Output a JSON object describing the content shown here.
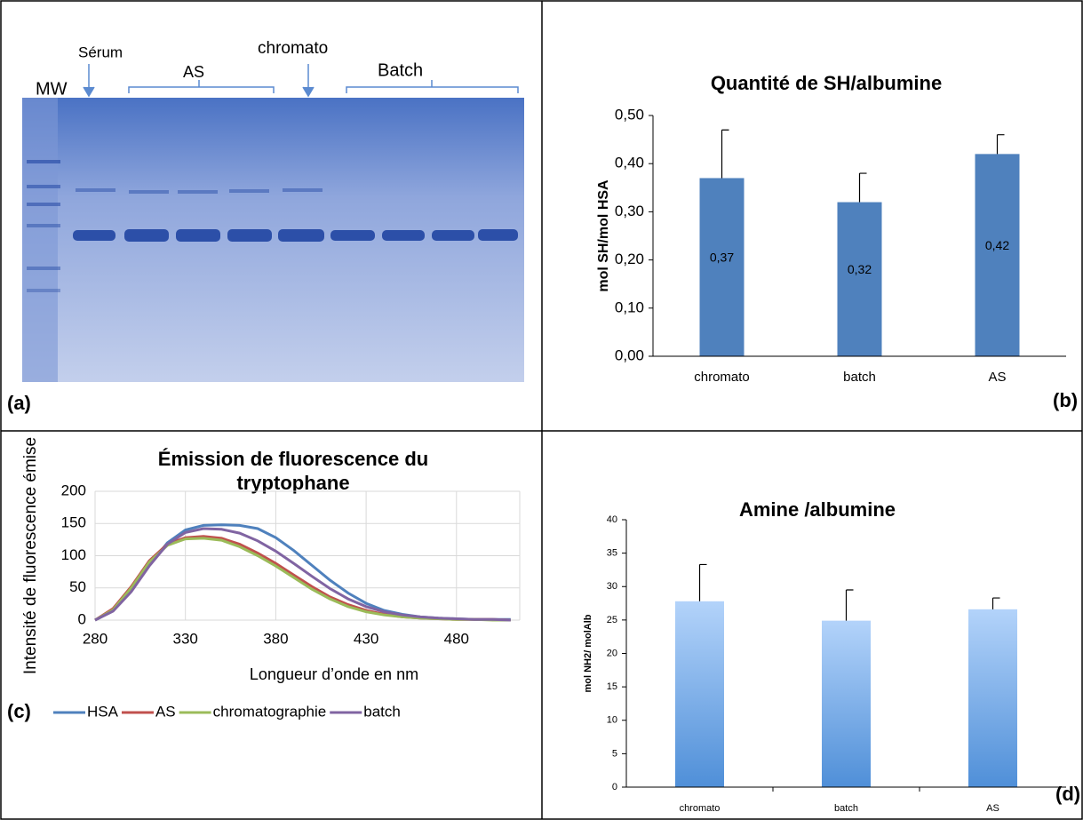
{
  "gel": {
    "labels": [
      "MW",
      "Sérum",
      "AS",
      "chromato",
      "Batch"
    ],
    "panel": "(a)"
  },
  "chart_data": [
    {
      "type": "bar",
      "panel": "(b)",
      "title": "Quantité de SH/albumine",
      "ylabel": "mol SH/mol HSA",
      "categories": [
        "chromato",
        "batch",
        "AS"
      ],
      "values": [
        0.37,
        0.32,
        0.42
      ],
      "value_labels": [
        "0,37",
        "0,32",
        "0,42"
      ],
      "errors": [
        0.1,
        0.06,
        0.04
      ],
      "color": "#4f81bd",
      "ylim": [
        0,
        0.5
      ],
      "yticks": [
        {
          "value": 0,
          "label": "0,00"
        },
        {
          "value": 0.1,
          "label": "0,10"
        },
        {
          "value": 0.2,
          "label": "0,20"
        },
        {
          "value": 0.3,
          "label": "0,30"
        },
        {
          "value": 0.4,
          "label": "0,40"
        },
        {
          "value": 0.5,
          "label": "0,50"
        }
      ]
    },
    {
      "type": "line",
      "panel": "(c)",
      "title": [
        "Émission de fluorescence du",
        "tryptophane"
      ],
      "xlabel": "Longueur d’onde en nm",
      "ylabel": "Intensité de fluorescence émise",
      "x": [
        280,
        290,
        300,
        310,
        320,
        330,
        340,
        350,
        360,
        370,
        380,
        390,
        400,
        410,
        420,
        430,
        440,
        450,
        460,
        470,
        480,
        490,
        500,
        510
      ],
      "series": [
        {
          "name": "HSA",
          "color": "#4f81bd",
          "values": [
            0,
            15,
            45,
            85,
            120,
            140,
            147,
            148,
            147,
            142,
            128,
            108,
            85,
            62,
            42,
            26,
            15,
            9,
            5,
            3,
            2,
            1,
            1,
            1
          ]
        },
        {
          "name": "AS",
          "color": "#c0504d",
          "values": [
            0,
            18,
            52,
            92,
            118,
            128,
            130,
            127,
            118,
            104,
            88,
            70,
            52,
            36,
            24,
            15,
            9,
            5,
            3,
            2,
            1,
            1,
            1,
            0
          ]
        },
        {
          "name": "chromatographie",
          "color": "#9bbb59",
          "values": [
            0,
            16,
            50,
            90,
            116,
            126,
            127,
            124,
            114,
            100,
            84,
            66,
            48,
            33,
            21,
            13,
            8,
            5,
            3,
            2,
            1,
            1,
            0,
            0
          ]
        },
        {
          "name": "batch",
          "color": "#8064a2",
          "values": [
            0,
            14,
            44,
            84,
            118,
            136,
            142,
            141,
            135,
            123,
            107,
            88,
            68,
            49,
            33,
            21,
            13,
            8,
            5,
            3,
            2,
            1,
            1,
            0
          ]
        }
      ],
      "xlim": [
        280,
        515
      ],
      "xticks": [
        280,
        330,
        380,
        430,
        480
      ],
      "ylim": [
        0,
        200
      ],
      "yticks": [
        0,
        50,
        100,
        150,
        200
      ],
      "grid": true,
      "legend": "bottom"
    },
    {
      "type": "bar",
      "panel": "(d)",
      "title": "Amine /albumine",
      "ylabel": "mol NH2/ molAlb",
      "categories": [
        "chromato",
        "batch",
        "AS"
      ],
      "values": [
        27.8,
        24.9,
        26.6
      ],
      "errors": [
        5.5,
        4.6,
        1.7
      ],
      "color": "#7fb0ea",
      "gradient": true,
      "ylim": [
        0,
        40
      ],
      "yticks": [
        0,
        5,
        10,
        15,
        20,
        25,
        30,
        35,
        40
      ]
    }
  ]
}
